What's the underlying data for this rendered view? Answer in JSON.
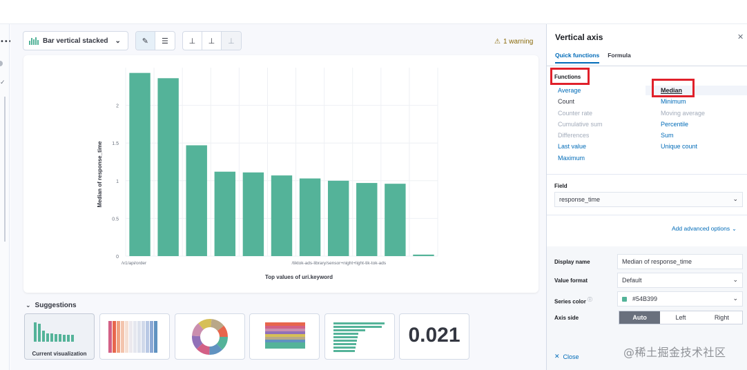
{
  "toolbar": {
    "chart_type_label": "Bar vertical stacked",
    "warning_text": "1 warning"
  },
  "chart_data": {
    "type": "bar",
    "xlabel": "Top values of uri.keyword",
    "ylabel": "Median of response_time",
    "ylim": [
      0,
      2.5
    ],
    "yticks": [
      0,
      0.5,
      1,
      1.5,
      2
    ],
    "ytick_labels": [
      "0",
      "0.5",
      "1",
      "1.5",
      "2"
    ],
    "categories": [
      "/v1/api/order",
      "",
      "",
      "",
      "",
      "",
      "/tiktok-ads-library/sensor+night+light-tik-tok-ads",
      "",
      "",
      "",
      ""
    ],
    "values": [
      2.43,
      2.36,
      1.47,
      1.12,
      1.11,
      1.07,
      1.03,
      1.0,
      0.97,
      0.96,
      0.02
    ],
    "color": "#54B399",
    "grid": true
  },
  "suggestions": {
    "title": "Suggestions",
    "current_label": "Current visualization",
    "metric_value": "0.021"
  },
  "flyout": {
    "title": "Vertical axis",
    "tabs": [
      "Quick functions",
      "Formula"
    ],
    "functions_label": "Functions",
    "functions_left": [
      {
        "label": "Average",
        "state": "link"
      },
      {
        "label": "Count",
        "state": "plain"
      },
      {
        "label": "Counter rate",
        "state": "disabled"
      },
      {
        "label": "Cumulative sum",
        "state": "disabled"
      },
      {
        "label": "Differences",
        "state": "disabled"
      },
      {
        "label": "Last value",
        "state": "link"
      },
      {
        "label": "Maximum",
        "state": "link"
      }
    ],
    "functions_right": [
      {
        "label": "Median",
        "state": "selected"
      },
      {
        "label": "Minimum",
        "state": "link"
      },
      {
        "label": "Moving average",
        "state": "disabled"
      },
      {
        "label": "Percentile",
        "state": "link"
      },
      {
        "label": "Sum",
        "state": "link"
      },
      {
        "label": "Unique count",
        "state": "link"
      }
    ],
    "field_label": "Field",
    "field_value": "response_time",
    "advanced_options": "Add advanced options",
    "display_name_label": "Display name",
    "display_name_value": "Median of response_time",
    "value_format_label": "Value format",
    "value_format_value": "Default",
    "series_color_label": "Series color",
    "series_color_value": "#54B399",
    "axis_side_label": "Axis side",
    "axis_side_options": [
      "Auto",
      "Left",
      "Right"
    ],
    "axis_side_selected": "Auto",
    "close_label": "Close"
  },
  "watermark": "@稀土掘金技术社区"
}
